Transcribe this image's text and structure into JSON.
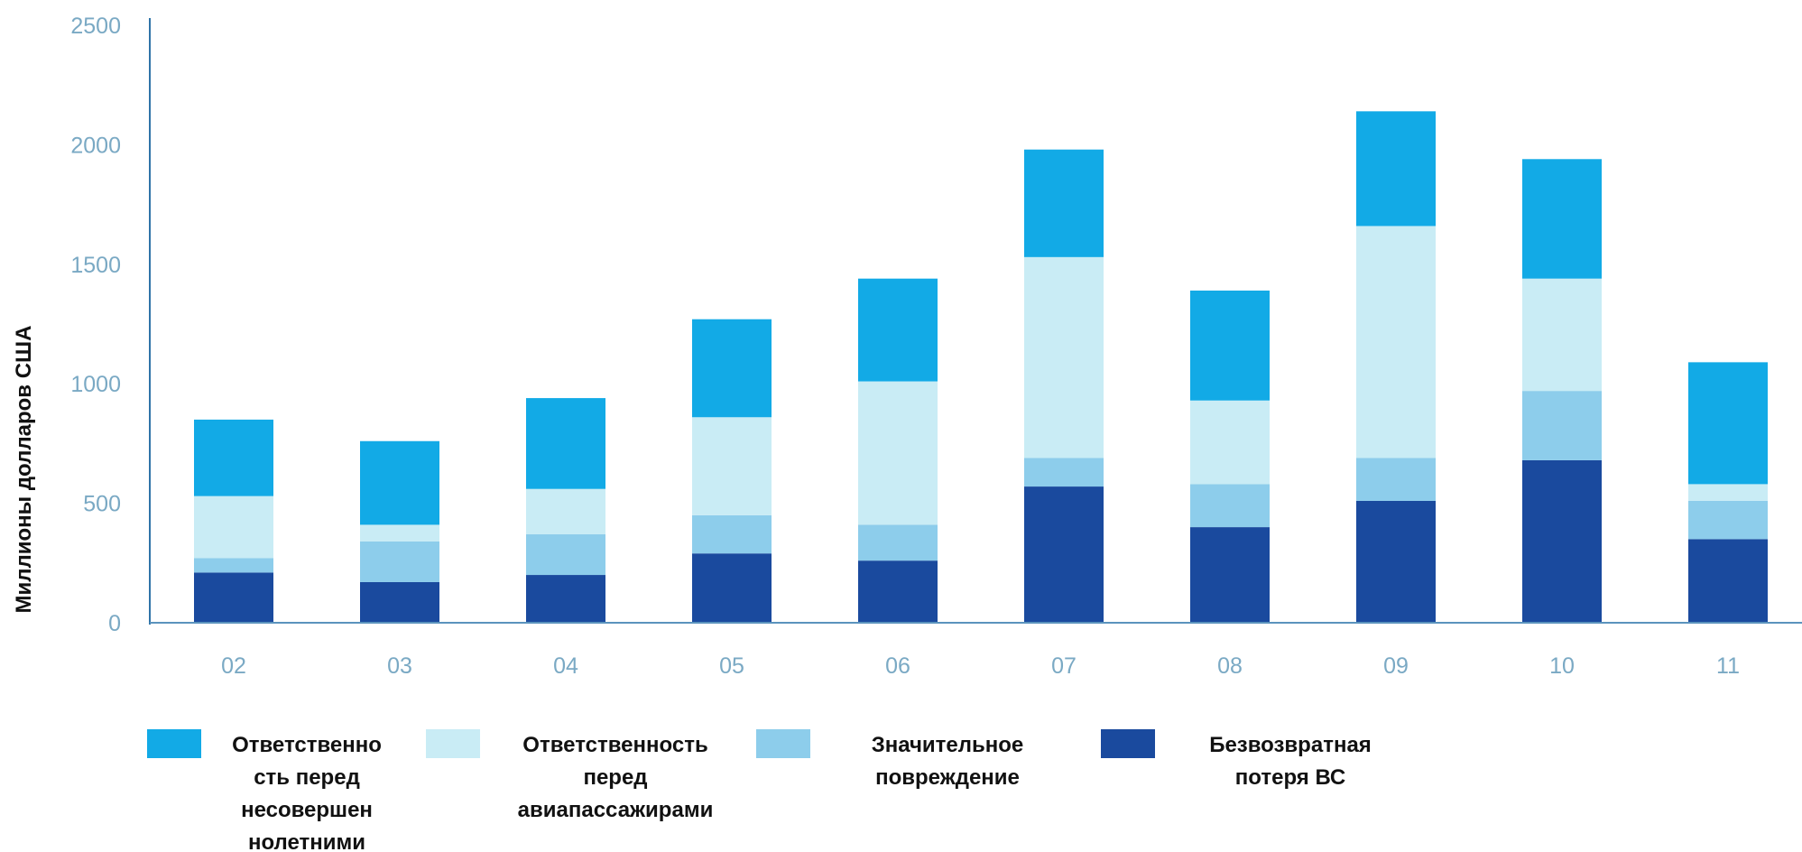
{
  "chart_data": {
    "type": "bar",
    "stacked": true,
    "title": "",
    "xlabel": "",
    "ylabel": "Миллионы долларов США",
    "ylim": [
      0,
      2500
    ],
    "yticks": [
      "0",
      "500",
      "1000",
      "1500",
      "2000",
      "2500"
    ],
    "categories": [
      "02",
      "03",
      "04",
      "05",
      "06",
      "07",
      "08",
      "09",
      "10",
      "11"
    ],
    "grid": false,
    "legend_position": "bottom",
    "series": [
      {
        "name": "Безвозвратная потеря ВС",
        "color": "#1a4a9e",
        "values": [
          210,
          170,
          200,
          290,
          260,
          570,
          400,
          510,
          680,
          350
        ]
      },
      {
        "name": "Значительное повреждение",
        "color": "#8dcdeb",
        "values": [
          60,
          170,
          170,
          160,
          150,
          120,
          180,
          180,
          290,
          160
        ]
      },
      {
        "name": "Ответственность перед авиапассажирами",
        "color": "#c9ecf5",
        "values": [
          260,
          70,
          190,
          410,
          600,
          840,
          350,
          970,
          470,
          70
        ]
      },
      {
        "name": "Ответственность перед несовершеннолетними",
        "color": "#12aae6",
        "values": [
          320,
          350,
          380,
          410,
          430,
          450,
          460,
          480,
          500,
          510
        ]
      }
    ],
    "legend": [
      {
        "series_index": 3,
        "lines": [
          "Ответственно",
          "сть перед",
          "несовершен",
          "нолетними"
        ]
      },
      {
        "series_index": 2,
        "lines": [
          "Ответственность",
          "перед",
          "авиапассажирами"
        ]
      },
      {
        "series_index": 1,
        "lines": [
          "Значительное",
          "повреждение"
        ]
      },
      {
        "series_index": 0,
        "lines": [
          "Безвозвратная",
          "потеря ВС"
        ]
      }
    ]
  }
}
